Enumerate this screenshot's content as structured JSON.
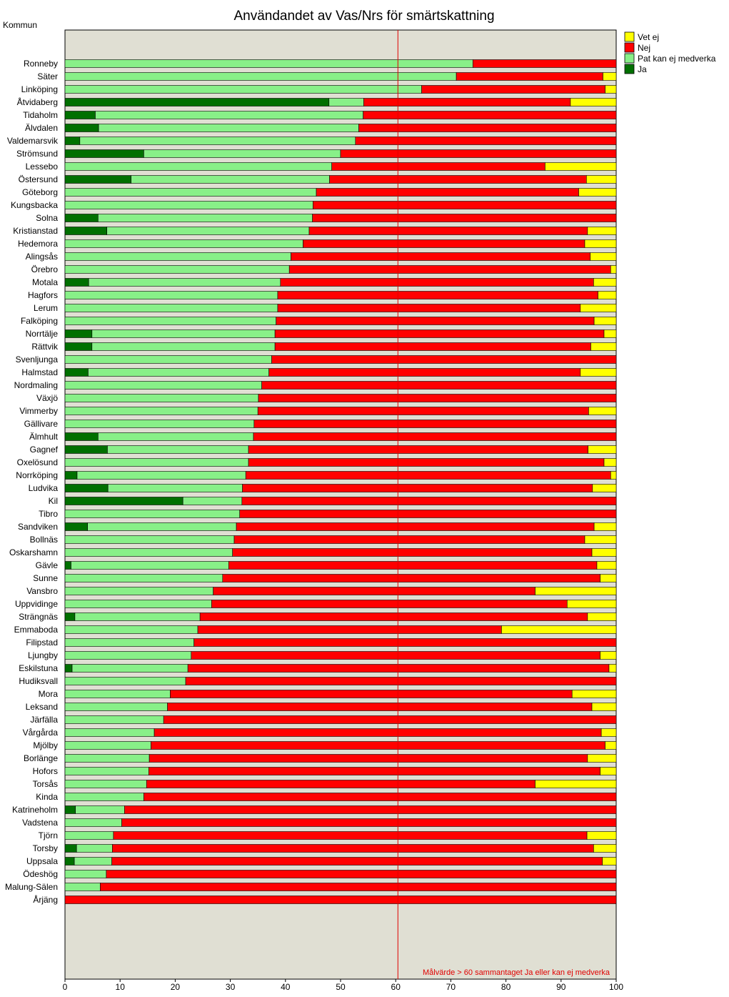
{
  "chart_data": {
    "type": "bar",
    "orientation": "horizontal",
    "stacked": true,
    "title": "Användandet av Vas/Nrs för smärtskattning",
    "ylabel": "Kommun",
    "xlim": [
      0,
      100
    ],
    "x_ticks": [
      "0",
      "10",
      "20",
      "30",
      "40",
      "50",
      "60",
      "70",
      "80",
      "90",
      "100"
    ],
    "legend_position": "top-right",
    "grid": false,
    "plot_background": "#e0dfd3",
    "target_line": {
      "value": 60.4,
      "color": "#e00000",
      "label": "Målvärde > 60 sammantaget Ja eller kan ej medverka"
    },
    "series": [
      {
        "name": "Ja",
        "color": "#007000"
      },
      {
        "name": "Pat kan ej medverka",
        "color": "#88f088"
      },
      {
        "name": "Nej",
        "color": "#ff0000"
      },
      {
        "name": "Vet ej",
        "color": "#ffff00"
      }
    ],
    "legend_order": [
      "Vet ej",
      "Nej",
      "Pat kan ej medverka",
      "Ja"
    ],
    "categories": [
      "Ronneby",
      "Säter",
      "Linköping",
      "Åtvidaberg",
      "Tidaholm",
      "Älvdalen",
      "Valdemarsvik",
      "Strömsund",
      "Lessebo",
      "Östersund",
      "Göteborg",
      "Kungsbacka",
      "Solna",
      "Kristianstad",
      "Hedemora",
      "Alingsås",
      "Örebro",
      "Motala",
      "Hagfors",
      "Lerum",
      "Falköping",
      "Norrtälje",
      "Rättvik",
      "Svenljunga",
      "Halmstad",
      "Nordmaling",
      "Växjö",
      "Vimmerby",
      "Gällivare",
      "Älmhult",
      "Gagnef",
      "Oxelösund",
      "Norrköping",
      "Ludvika",
      "Kil",
      "Tibro",
      "Sandviken",
      "Bollnäs",
      "Oskarshamn",
      "Gävle",
      "Sunne",
      "Vansbro",
      "Uppvidinge",
      "Strängnäs",
      "Emmaboda",
      "Filipstad",
      "Ljungby",
      "Eskilstuna",
      "Hudiksvall",
      "Mora",
      "Leksand",
      "Järfälla",
      "Vårgårda",
      "Mjölby",
      "Borlänge",
      "Hofors",
      "Torsås",
      "Kinda",
      "Katrineholm",
      "Vadstena",
      "Tjörn",
      "Torsby",
      "Uppsala",
      "Ödeshög",
      "Malung-Sälen",
      "Årjäng"
    ],
    "values": [
      [
        0,
        74,
        26,
        0
      ],
      [
        0,
        71,
        26.6,
        2.4
      ],
      [
        0,
        64.7,
        33.3,
        2
      ],
      [
        47.9,
        6.3,
        37.5,
        8.3
      ],
      [
        5.5,
        48.6,
        45.9,
        0
      ],
      [
        6.1,
        47.2,
        46.7,
        0
      ],
      [
        2.7,
        50,
        47.3,
        0
      ],
      [
        14.3,
        35.7,
        50,
        0
      ],
      [
        0,
        48.4,
        38.7,
        12.9
      ],
      [
        12,
        36,
        46.6,
        5.4
      ],
      [
        0,
        45.6,
        47.6,
        6.8
      ],
      [
        0,
        45,
        55,
        0
      ],
      [
        6,
        38.9,
        55.1,
        0
      ],
      [
        7.6,
        36.7,
        50.5,
        5.2
      ],
      [
        0,
        43.2,
        51.1,
        5.7
      ],
      [
        0,
        41,
        54.3,
        4.7
      ],
      [
        0,
        40.7,
        58.3,
        1
      ],
      [
        4.3,
        34.8,
        56.8,
        4.1
      ],
      [
        0,
        38.6,
        58.1,
        3.3
      ],
      [
        0,
        38.6,
        54.9,
        6.5
      ],
      [
        0,
        38.3,
        57.7,
        4
      ],
      [
        4.9,
        33.2,
        59.7,
        2.2
      ],
      [
        4.9,
        33.2,
        57.3,
        4.6
      ],
      [
        0,
        37.5,
        62.5,
        0
      ],
      [
        4.2,
        32.8,
        56.5,
        6.5
      ],
      [
        0,
        35.7,
        64.3,
        0
      ],
      [
        0,
        35.1,
        64.9,
        0
      ],
      [
        0,
        35,
        60,
        5
      ],
      [
        0,
        34.3,
        65.7,
        0
      ],
      [
        6,
        28.2,
        65.8,
        0
      ],
      [
        7.7,
        25.6,
        61.6,
        5.1
      ],
      [
        0,
        33.3,
        64.5,
        2.2
      ],
      [
        2.2,
        30.6,
        66.2,
        1
      ],
      [
        7.8,
        24.4,
        63.5,
        4.3
      ],
      [
        21.4,
        10.7,
        67.9,
        0
      ],
      [
        0,
        31.7,
        68.3,
        0
      ],
      [
        4.1,
        27,
        64.9,
        4
      ],
      [
        0,
        30.7,
        63.6,
        5.7
      ],
      [
        0,
        30.4,
        65.2,
        4.4
      ],
      [
        1.1,
        28.6,
        66.8,
        3.5
      ],
      [
        0,
        28.6,
        68.5,
        2.9
      ],
      [
        0,
        26.9,
        58.4,
        14.7
      ],
      [
        0,
        26.6,
        64.5,
        8.9
      ],
      [
        1.8,
        22.7,
        70.3,
        5.2
      ],
      [
        0,
        24.1,
        55.1,
        20.8
      ],
      [
        0,
        23.4,
        76.6,
        0
      ],
      [
        0,
        22.9,
        74.2,
        2.9
      ],
      [
        1.3,
        21,
        76.4,
        1.3
      ],
      [
        0,
        21.9,
        78.1,
        0
      ],
      [
        0,
        19.1,
        72.9,
        8
      ],
      [
        0,
        18.6,
        77,
        4.4
      ],
      [
        0,
        17.9,
        82.1,
        0
      ],
      [
        0,
        16.2,
        81.1,
        2.7
      ],
      [
        0,
        15.6,
        82.4,
        2
      ],
      [
        0,
        15.3,
        79.5,
        5.2
      ],
      [
        0,
        15.2,
        81.9,
        2.9
      ],
      [
        0,
        14.8,
        70.5,
        14.7
      ],
      [
        0,
        14.3,
        85.7,
        0
      ],
      [
        1.9,
        8.9,
        89.2,
        0
      ],
      [
        0,
        10.3,
        89.7,
        0
      ],
      [
        0,
        8.8,
        85.9,
        5.3
      ],
      [
        2.1,
        6.5,
        87.3,
        4.1
      ],
      [
        1.7,
        6.8,
        89,
        2.5
      ],
      [
        0,
        7.5,
        92.5,
        0
      ],
      [
        0,
        6.4,
        93.6,
        0
      ],
      [
        0,
        0,
        100,
        0
      ]
    ]
  }
}
